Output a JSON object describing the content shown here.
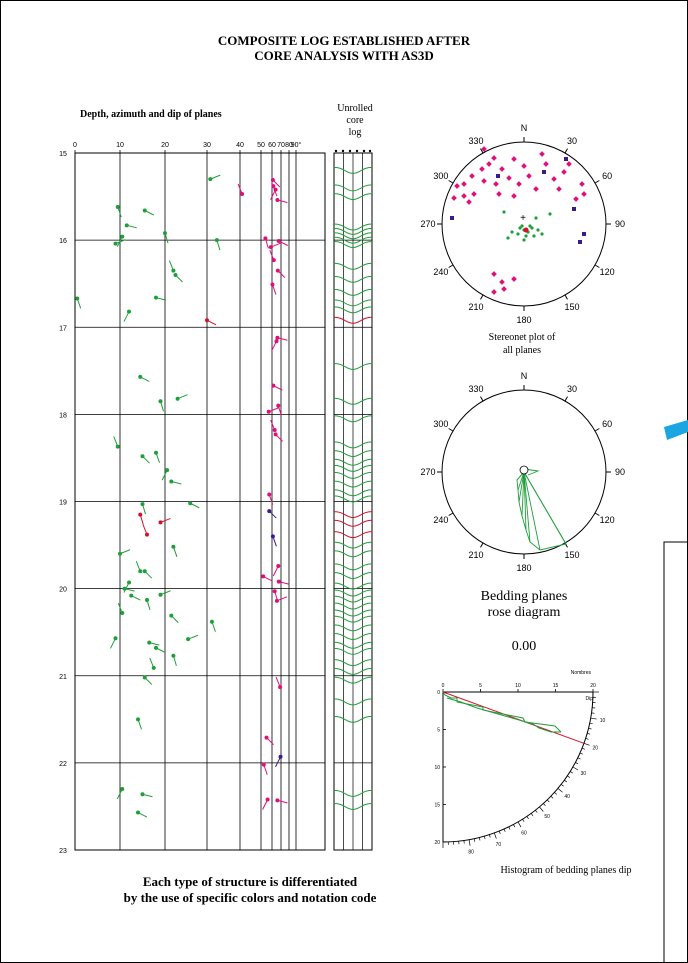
{
  "title": {
    "line1": "COMPOSITE  LOG ESTABLISHED AFTER",
    "line2": "CORE  ANALYSIS  WITH  AS3D"
  },
  "depth_log": {
    "title": "Depth,  azimuth  and  dip  of  planes",
    "dip_ticks": [
      "0",
      "10",
      "20",
      "30",
      "40",
      "50",
      "60",
      "70",
      "80",
      "90°"
    ],
    "depth_ticks": [
      "15",
      "16",
      "17",
      "18",
      "19",
      "20",
      "21",
      "22",
      "23"
    ]
  },
  "core_log": {
    "title_lines": [
      "Unrolled",
      "core",
      "log"
    ]
  },
  "stereonet": {
    "labels": [
      "N",
      "30",
      "60",
      "90",
      "120",
      "150",
      "180",
      "210",
      "240",
      "270",
      "300",
      "330"
    ],
    "caption_lines": [
      "Stereonet plot of",
      "all  planes"
    ]
  },
  "rose": {
    "labels": [
      "N",
      "30",
      "60",
      "90",
      "120",
      "150",
      "180",
      "210",
      "240",
      "270",
      "300",
      "330"
    ],
    "caption_lines": [
      "Bedding planes",
      "rose diagram"
    ],
    "value": "0.00"
  },
  "histogram": {
    "axis_label": "Nombres",
    "dip_label": "Dip",
    "top_ticks": [
      "0",
      "5",
      "10",
      "15",
      "20"
    ],
    "caption": "Histogram of bedding  planes dip"
  },
  "note": {
    "line1": "Each type  of  structure  is  differentiated",
    "line2": "by  the  use  of  specific colors and notation code"
  },
  "colors": {
    "green": "#1f9e3a",
    "magenta": "#e0107a",
    "red": "#d8102a",
    "purple": "#3b1a8c"
  },
  "chart_data": {
    "type": "scatter",
    "x_axis": "dip (degrees)",
    "y_axis": "depth",
    "xlim": [
      0,
      90
    ],
    "ylim": [
      15,
      23
    ],
    "series": [
      {
        "color": "green",
        "points": [
          [
            9.5,
            15.62
          ],
          [
            10.5,
            15.96
          ],
          [
            11.5,
            15.83
          ],
          [
            15.5,
            15.66
          ],
          [
            20,
            15.92
          ],
          [
            9,
            16.04
          ],
          [
            22,
            16.35
          ],
          [
            22.5,
            16.4
          ],
          [
            0.5,
            16.67
          ],
          [
            12,
            16.82
          ],
          [
            18,
            16.66
          ],
          [
            14.5,
            17.57
          ],
          [
            19,
            17.85
          ],
          [
            23,
            17.82
          ],
          [
            9.5,
            18.37
          ],
          [
            15,
            18.48
          ],
          [
            18,
            18.44
          ],
          [
            20.5,
            18.64
          ],
          [
            21.5,
            18.77
          ],
          [
            26,
            19.02
          ],
          [
            15,
            19.03
          ],
          [
            10,
            19.6
          ],
          [
            14.5,
            19.8
          ],
          [
            15.5,
            19.8
          ],
          [
            22,
            19.52
          ],
          [
            12,
            19.93
          ],
          [
            11,
            20
          ],
          [
            12.5,
            20.08
          ],
          [
            16,
            20.13
          ],
          [
            19,
            20.07
          ],
          [
            10.5,
            20.28
          ],
          [
            21.5,
            20.31
          ],
          [
            31.5,
            20.38
          ],
          [
            9,
            20.57
          ],
          [
            16.5,
            20.62
          ],
          [
            18,
            20.68
          ],
          [
            22,
            20.77
          ],
          [
            25.5,
            20.58
          ],
          [
            17.5,
            20.91
          ],
          [
            15.5,
            21.02
          ],
          [
            14,
            21.5
          ],
          [
            10.5,
            22.3
          ],
          [
            15,
            22.36
          ],
          [
            14,
            22.57
          ],
          [
            33,
            16
          ],
          [
            31,
            15.3
          ]
        ]
      },
      {
        "color": "magenta",
        "points": [
          [
            41,
            15.47
          ],
          [
            61,
            15.31
          ],
          [
            61.5,
            15.38
          ],
          [
            64,
            15.42
          ],
          [
            66,
            15.54
          ],
          [
            67.5,
            16.01
          ],
          [
            54,
            15.98
          ],
          [
            59,
            16.08
          ],
          [
            62,
            16.23
          ],
          [
            66.5,
            16.35
          ],
          [
            60.5,
            16.51
          ],
          [
            65,
            17.16
          ],
          [
            66,
            17.12
          ],
          [
            61.5,
            17.67
          ],
          [
            67,
            17.9
          ],
          [
            57,
            17.97
          ],
          [
            63,
            18.18
          ],
          [
            64,
            18.23
          ],
          [
            57.5,
            18.92
          ],
          [
            67,
            19.74
          ],
          [
            67.5,
            19.92
          ],
          [
            52,
            19.86
          ],
          [
            63,
            20.03
          ],
          [
            65.5,
            20.14
          ],
          [
            69,
            21.13
          ],
          [
            55,
            21.71
          ],
          [
            52.5,
            22.02
          ],
          [
            56,
            22.42
          ],
          [
            66,
            22.43
          ]
        ]
      },
      {
        "color": "red",
        "points": [
          [
            30,
            16.92
          ],
          [
            14.5,
            19.15
          ],
          [
            19,
            19.24
          ],
          [
            16,
            19.38
          ]
        ]
      },
      {
        "color": "purple",
        "points": [
          [
            57.5,
            19.11
          ],
          [
            61,
            19.4
          ],
          [
            69.5,
            21.93
          ]
        ]
      }
    ]
  }
}
